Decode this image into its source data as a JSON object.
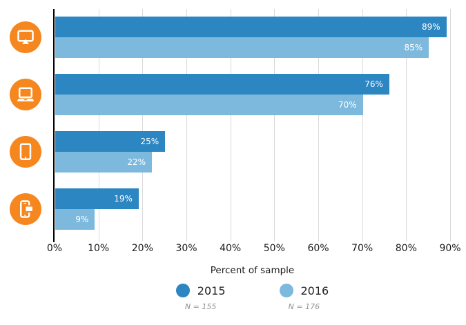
{
  "chart_data": {
    "type": "bar",
    "orientation": "horizontal",
    "xlabel": "Percent of sample",
    "xlim": [
      0,
      90
    ],
    "x_ticks": [
      "0%",
      "10%",
      "20%",
      "30%",
      "40%",
      "50%",
      "60%",
      "70%",
      "80%",
      "90%"
    ],
    "grid": "vertical gridlines, light gray",
    "legend_position": "bottom",
    "categories": [
      {
        "id": "desktop-computer",
        "icon": "desktop-monitor-icon"
      },
      {
        "id": "laptop",
        "icon": "laptop-icon"
      },
      {
        "id": "tablet",
        "icon": "tablet-icon"
      },
      {
        "id": "smartphone",
        "icon": "smartphone-chat-icon"
      }
    ],
    "series": [
      {
        "name": "2015",
        "sample_label": "N = 155",
        "color": "#2b86c2",
        "values": [
          89,
          76,
          25,
          19
        ],
        "value_labels": [
          "89%",
          "76%",
          "25%",
          "19%"
        ]
      },
      {
        "name": "2016",
        "sample_label": "N = 176",
        "color": "#7db9dd",
        "values": [
          85,
          70,
          22,
          9
        ],
        "value_labels": [
          "85%",
          "70%",
          "22%",
          "9%"
        ]
      }
    ]
  },
  "colors": {
    "icon_background": "#f6861e",
    "icon_glyph": "#ffffff",
    "gridline": "#d9d9d9",
    "axis_line": "#000000",
    "bar_label_text": "#ffffff",
    "tick_label_text": "#1a1a1a",
    "axis_title_text": "#1a1a1a",
    "legend_label_text": "#222222",
    "legend_n_text": "#8f8f8f",
    "background": "#ffffff"
  }
}
